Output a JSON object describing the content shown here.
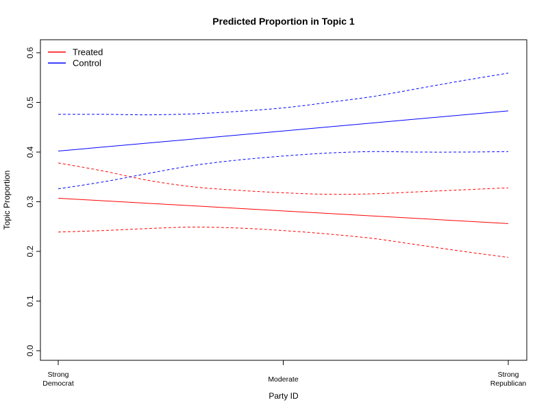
{
  "chart_data": {
    "type": "line",
    "title": "Predicted Proportion in Topic 1",
    "xlabel": "Party ID",
    "ylabel": "Topic Proportion",
    "x_ticks": [
      {
        "x": 0.0,
        "label": [
          "Strong",
          "Democrat"
        ]
      },
      {
        "x": 0.5,
        "label": [
          "Moderate"
        ]
      },
      {
        "x": 1.0,
        "label": [
          "Strong",
          "Republican"
        ]
      }
    ],
    "xlim": [
      0,
      1
    ],
    "ylim": [
      0.0,
      0.6
    ],
    "y_ticks": [
      0.0,
      0.1,
      0.2,
      0.3,
      0.4,
      0.5,
      0.6
    ],
    "y_tick_labels": [
      "0.0",
      "0.1",
      "0.2",
      "0.3",
      "0.4",
      "0.5",
      "0.6"
    ],
    "grid": false,
    "legend_position": "top-left",
    "series": [
      {
        "name": "Treated",
        "color": "#ff0000",
        "x": [
          0.0,
          1.0
        ],
        "mean": [
          0.307,
          0.256
        ],
        "upper": [
          [
            0.0,
            0.378
          ],
          [
            0.1,
            0.362
          ],
          [
            0.2,
            0.343
          ],
          [
            0.3,
            0.33
          ],
          [
            0.4,
            0.323
          ],
          [
            0.5,
            0.318
          ],
          [
            0.6,
            0.315
          ],
          [
            0.7,
            0.316
          ],
          [
            0.8,
            0.32
          ],
          [
            0.9,
            0.324
          ],
          [
            1.0,
            0.328
          ]
        ],
        "lower": [
          [
            0.0,
            0.239
          ],
          [
            0.1,
            0.242
          ],
          [
            0.2,
            0.246
          ],
          [
            0.3,
            0.249
          ],
          [
            0.4,
            0.247
          ],
          [
            0.5,
            0.242
          ],
          [
            0.6,
            0.235
          ],
          [
            0.7,
            0.226
          ],
          [
            0.8,
            0.213
          ],
          [
            0.9,
            0.2
          ],
          [
            1.0,
            0.188
          ]
        ]
      },
      {
        "name": "Control",
        "color": "#0000ff",
        "x": [
          0.0,
          1.0
        ],
        "mean": [
          0.402,
          0.483
        ],
        "upper": [
          [
            0.0,
            0.476
          ],
          [
            0.1,
            0.476
          ],
          [
            0.2,
            0.475
          ],
          [
            0.3,
            0.477
          ],
          [
            0.4,
            0.482
          ],
          [
            0.5,
            0.489
          ],
          [
            0.6,
            0.5
          ],
          [
            0.7,
            0.512
          ],
          [
            0.8,
            0.528
          ],
          [
            0.9,
            0.544
          ],
          [
            1.0,
            0.559
          ]
        ],
        "lower": [
          [
            0.0,
            0.326
          ],
          [
            0.1,
            0.34
          ],
          [
            0.2,
            0.357
          ],
          [
            0.3,
            0.373
          ],
          [
            0.4,
            0.384
          ],
          [
            0.5,
            0.392
          ],
          [
            0.6,
            0.398
          ],
          [
            0.7,
            0.401
          ],
          [
            0.8,
            0.4
          ],
          [
            0.9,
            0.4
          ],
          [
            1.0,
            0.401
          ]
        ]
      }
    ]
  }
}
